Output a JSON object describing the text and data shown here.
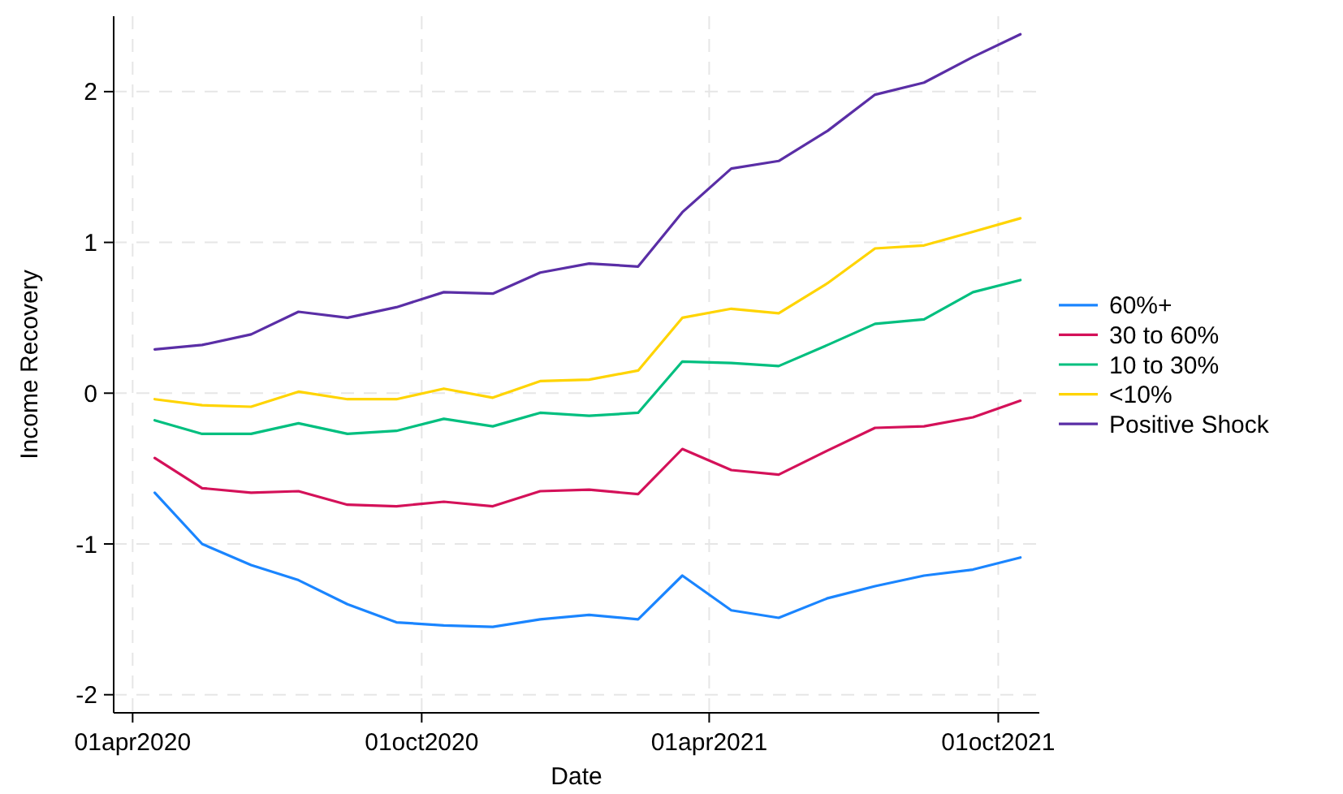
{
  "chart_data": {
    "type": "line",
    "xlabel": "Date",
    "ylabel": "Income Recovery",
    "x": [
      "2020-04-15",
      "2020-05-15",
      "2020-06-15",
      "2020-07-15",
      "2020-08-15",
      "2020-09-15",
      "2020-10-15",
      "2020-11-15",
      "2020-12-15",
      "2021-01-15",
      "2021-02-15",
      "2021-03-15",
      "2021-04-15",
      "2021-05-15",
      "2021-06-15",
      "2021-07-15",
      "2021-08-15",
      "2021-09-15",
      "2021-10-15"
    ],
    "series": [
      {
        "name": "60%+",
        "color": "#1a85ff",
        "values": [
          -0.66,
          -1.0,
          -1.14,
          -1.24,
          -1.4,
          -1.52,
          -1.54,
          -1.55,
          -1.5,
          -1.47,
          -1.5,
          -1.21,
          -1.44,
          -1.49,
          -1.36,
          -1.28,
          -1.21,
          -1.17,
          -1.09
        ]
      },
      {
        "name": "30 to 60%",
        "color": "#d41159",
        "values": [
          -0.43,
          -0.63,
          -0.66,
          -0.65,
          -0.74,
          -0.75,
          -0.72,
          -0.75,
          -0.65,
          -0.64,
          -0.67,
          -0.37,
          -0.51,
          -0.54,
          -0.38,
          -0.23,
          -0.22,
          -0.16,
          -0.05
        ]
      },
      {
        "name": "10 to 30%",
        "color": "#00bf7f",
        "values": [
          -0.18,
          -0.27,
          -0.27,
          -0.2,
          -0.27,
          -0.25,
          -0.17,
          -0.22,
          -0.13,
          -0.15,
          -0.13,
          0.21,
          0.2,
          0.18,
          0.32,
          0.46,
          0.49,
          0.67,
          0.75
        ]
      },
      {
        "name": "<10%",
        "color": "#ffd400",
        "values": [
          -0.04,
          -0.08,
          -0.09,
          0.01,
          -0.04,
          -0.04,
          0.03,
          -0.03,
          0.08,
          0.09,
          0.15,
          0.5,
          0.56,
          0.53,
          0.73,
          0.96,
          0.98,
          1.07,
          1.16
        ]
      },
      {
        "name": "Positive Shock",
        "color": "#5a2ea6",
        "values": [
          0.29,
          0.32,
          0.39,
          0.54,
          0.5,
          0.57,
          0.67,
          0.66,
          0.8,
          0.86,
          0.84,
          1.2,
          1.49,
          1.54,
          1.74,
          1.98,
          2.06,
          2.23,
          2.38
        ]
      }
    ],
    "xlim": [
      "2020-03-20",
      "2021-10-27"
    ],
    "xticks": [
      {
        "value": "2020-04-01",
        "label": "01apr2020"
      },
      {
        "value": "2020-10-01",
        "label": "01oct2020"
      },
      {
        "value": "2021-04-01",
        "label": "01apr2021"
      },
      {
        "value": "2021-10-01",
        "label": "01oct2021"
      }
    ],
    "ylim": [
      -2.12,
      2.5
    ],
    "yticks": [
      -2,
      -1,
      0,
      1,
      2
    ],
    "grid": true,
    "legend": "right",
    "marker": "none",
    "line_style": "solid"
  }
}
